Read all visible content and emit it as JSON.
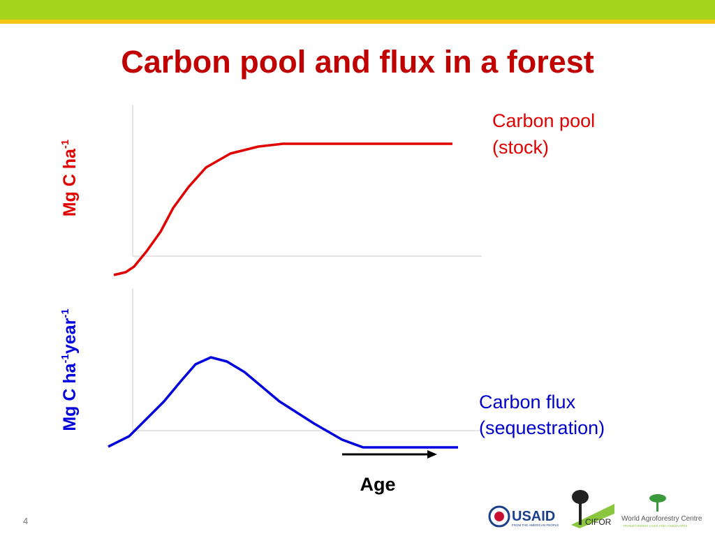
{
  "header": {
    "title": "Carbon pool and flux  in a forest"
  },
  "pool": {
    "axis_label": [
      "Mg C ha",
      "-1"
    ],
    "label": [
      "Carbon pool",
      "(stock)"
    ]
  },
  "flux": {
    "axis_label": [
      "Mg C ha",
      "-1",
      "year",
      "-1"
    ],
    "label": [
      "Carbon flux",
      "(sequestration)"
    ]
  },
  "x_label": "Age",
  "page_number": "4",
  "logos": {
    "usaid": "USAID",
    "usaid_tagline": "FROM THE AMERICAN PEOPLE",
    "cifor": "CIFOR",
    "icraf": "World Agroforestry Centre",
    "icraf_tagline": "TRANSFORMING LIVES AND LANDSCAPES"
  }
}
